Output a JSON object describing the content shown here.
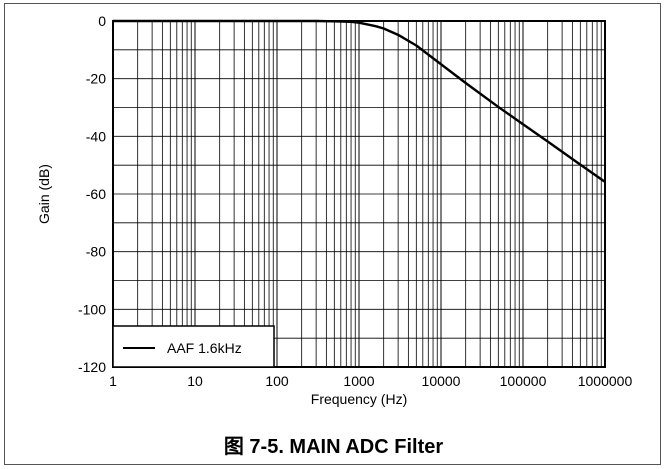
{
  "caption": "图 7-5. MAIN ADC Filter",
  "chart_data": {
    "type": "line",
    "title": "",
    "xlabel": "Frequency (Hz)",
    "ylabel": "Gain (dB)",
    "xscale": "log",
    "xlim": [
      1,
      1000000
    ],
    "ylim": [
      -120,
      0
    ],
    "x_ticks": [
      "1",
      "10",
      "100",
      "1000",
      "10000",
      "100000",
      "1000000"
    ],
    "y_ticks": [
      "0",
      "-20",
      "-40",
      "-60",
      "-80",
      "-100",
      "-120"
    ],
    "grid": true,
    "legend_position": "bottom-left",
    "series": [
      {
        "name": "AAF 1.6kHz",
        "color": "#000000",
        "x": [
          1,
          10,
          100,
          300,
          500,
          800,
          1000,
          1600,
          2000,
          3000,
          5000,
          10000,
          20000,
          50000,
          100000,
          200000,
          500000,
          1000000
        ],
        "y": [
          0,
          0,
          0,
          0,
          -0.1,
          -0.3,
          -0.6,
          -1.8,
          -2.6,
          -4.8,
          -8.5,
          -15,
          -21.5,
          -29.8,
          -35.8,
          -41.8,
          -49.8,
          -55.8
        ]
      }
    ]
  }
}
